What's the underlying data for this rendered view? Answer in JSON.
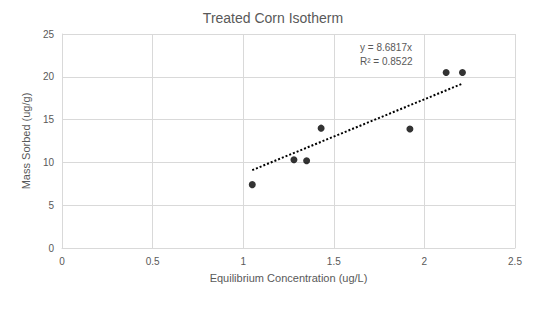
{
  "chart_data": {
    "type": "scatter",
    "title": "Treated Corn Isotherm",
    "x_label": "Equilibrium Concentration (ug/L)",
    "y_label": "Mass Sorbed (ug/g)",
    "x": [
      1.05,
      1.28,
      1.35,
      1.43,
      1.92,
      2.12,
      2.21
    ],
    "values": [
      7.4,
      10.3,
      10.2,
      14.0,
      13.9,
      20.5,
      20.5
    ],
    "color": "#000000",
    "marker": "circle",
    "xlim": [
      0,
      2.5
    ],
    "xticks": [
      0,
      0.5,
      1,
      1.5,
      2,
      2.5
    ],
    "ylim": [
      0,
      25
    ],
    "yticks": [
      0,
      5,
      10,
      15,
      20,
      25
    ],
    "grid": true,
    "trendline": {
      "x": [
        1.05,
        2.21
      ],
      "values": [
        9.1,
        19.2
      ],
      "line_style": "dotted",
      "color": "#000000"
    },
    "annotations": [
      "y = 8.6817x",
      "R² = 0.8522"
    ]
  }
}
